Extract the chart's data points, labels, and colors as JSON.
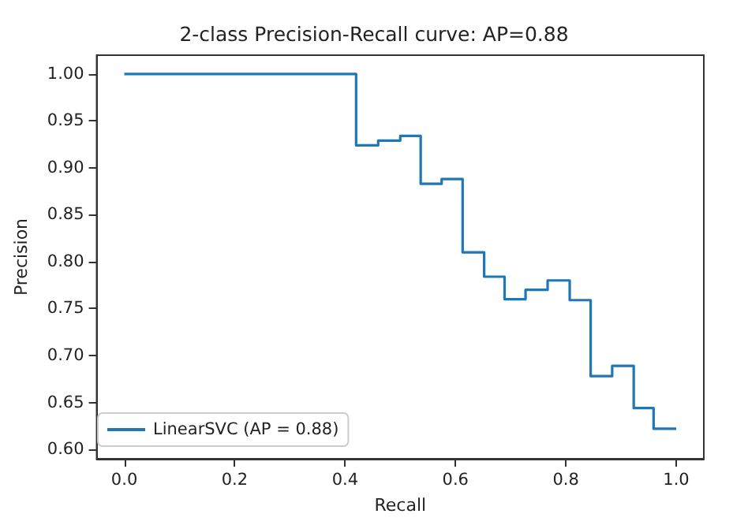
{
  "chart_data": {
    "type": "step",
    "title": "2-class Precision-Recall curve: AP=0.88",
    "xlabel": "Recall",
    "ylabel": "Precision",
    "x": [
      0,
      0.42,
      0.46,
      0.5,
      0.537,
      0.575,
      0.613,
      0.652,
      0.689,
      0.727,
      0.767,
      0.807,
      0.845,
      0.884,
      0.923,
      0.959,
      1.0
    ],
    "series": [
      {
        "name": "LinearSVC (AP = 0.88)",
        "color": "#1f77b4",
        "values": [
          1.0,
          0.924,
          0.929,
          0.934,
          0.883,
          0.888,
          0.81,
          0.784,
          0.76,
          0.77,
          0.78,
          0.759,
          0.678,
          0.689,
          0.644,
          0.622,
          0.622
        ]
      }
    ],
    "xlim": [
      -0.05,
      1.05
    ],
    "ylim": [
      0.59,
      1.02
    ],
    "xticks": [
      {
        "value": 0,
        "label": "0.0"
      },
      {
        "value": 0.2,
        "label": "0.2"
      },
      {
        "value": 0.4,
        "label": "0.4"
      },
      {
        "value": 0.6,
        "label": "0.6"
      },
      {
        "value": 0.8,
        "label": "0.8"
      },
      {
        "value": 1,
        "label": "1.0"
      }
    ],
    "yticks": [
      {
        "value": 0.6,
        "label": "0.60"
      },
      {
        "value": 0.65,
        "label": "0.65"
      },
      {
        "value": 0.7,
        "label": "0.70"
      },
      {
        "value": 0.75,
        "label": "0.75"
      },
      {
        "value": 0.8,
        "label": "0.80"
      },
      {
        "value": 0.85,
        "label": "0.85"
      },
      {
        "value": 0.9,
        "label": "0.90"
      },
      {
        "value": 0.95,
        "label": "0.95"
      },
      {
        "value": 1,
        "label": "1.00"
      }
    ],
    "grid": false,
    "legend": "bottom left",
    "marker": "none",
    "line_style": "solid"
  }
}
